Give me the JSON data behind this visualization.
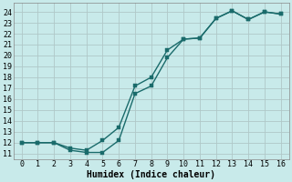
{
  "xlabel": "Humidex (Indice chaleur)",
  "bg_color": "#c8eaea",
  "grid_color": "#b0c8c8",
  "line_color": "#1a6b6b",
  "xlim": [
    -0.5,
    16.5
  ],
  "ylim": [
    10.5,
    24.8
  ],
  "xticks": [
    0,
    1,
    2,
    3,
    4,
    5,
    6,
    7,
    8,
    9,
    10,
    11,
    12,
    13,
    14,
    15,
    16
  ],
  "yticks": [
    11,
    12,
    13,
    14,
    15,
    16,
    17,
    18,
    19,
    20,
    21,
    22,
    23,
    24
  ],
  "curve_upper_x": [
    0,
    1,
    2,
    3,
    4,
    5,
    6,
    7,
    8,
    9,
    10,
    11,
    12,
    13,
    14,
    15,
    16
  ],
  "curve_upper_y": [
    12.0,
    12.0,
    12.0,
    11.5,
    11.3,
    12.2,
    13.4,
    17.2,
    18.0,
    20.5,
    21.5,
    21.6,
    23.4,
    24.1,
    23.3,
    24.0,
    23.8
  ],
  "curve_lower_x": [
    0,
    1,
    2,
    3,
    4,
    5,
    6,
    7,
    8,
    9,
    10,
    11,
    12,
    13,
    14,
    15,
    16
  ],
  "curve_lower_y": [
    12.0,
    12.0,
    12.0,
    11.3,
    11.1,
    11.1,
    12.2,
    16.5,
    17.2,
    19.8,
    21.5,
    21.6,
    23.4,
    24.1,
    23.3,
    24.0,
    23.8
  ],
  "marker_size": 2.5,
  "line_width": 1.0,
  "font_size_label": 7,
  "font_size_tick": 6.0
}
